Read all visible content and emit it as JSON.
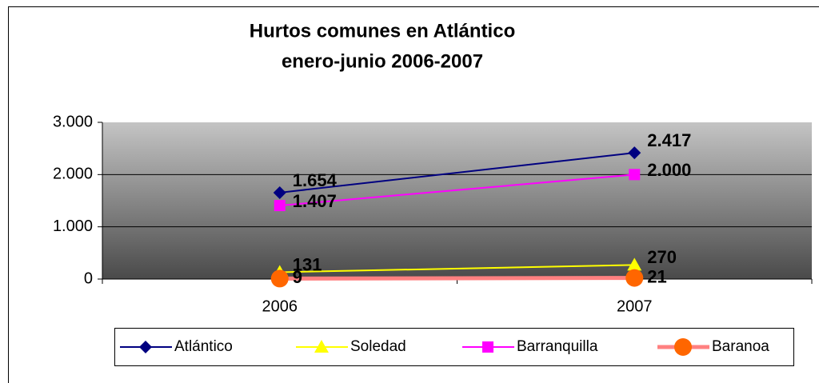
{
  "chart_data": {
    "type": "line",
    "title": [
      "Hurtos comunes en Atlántico",
      "enero-junio 2006-2007"
    ],
    "categories": [
      "2006",
      "2007"
    ],
    "series": [
      {
        "name": "Atlántico",
        "color": "#000080",
        "marker": "diamond",
        "values": [
          1654,
          2417
        ],
        "value_labels": [
          "1.654",
          "2.417"
        ]
      },
      {
        "name": "Soledad",
        "color": "#ffff00",
        "marker": "triangle",
        "values": [
          131,
          270
        ]
      },
      {
        "name": "Barranquilla",
        "color": "#ff00ff",
        "marker": "square",
        "values": [
          1407,
          2000
        ],
        "value_labels": [
          "1.407",
          "2.000"
        ]
      },
      {
        "name": "Baranoa",
        "color": "#ff6600",
        "line_color": "#ff8080",
        "marker": "circle",
        "values": [
          9,
          21
        ]
      }
    ],
    "ylim": [
      0,
      3000
    ],
    "yticks": [
      0,
      {
        "value": 1000,
        "label": "1.000"
      },
      {
        "value": 2000,
        "label": "2.000"
      },
      {
        "value": 3000,
        "label": "3.000"
      }
    ],
    "grid": true,
    "legend": "bottom"
  }
}
